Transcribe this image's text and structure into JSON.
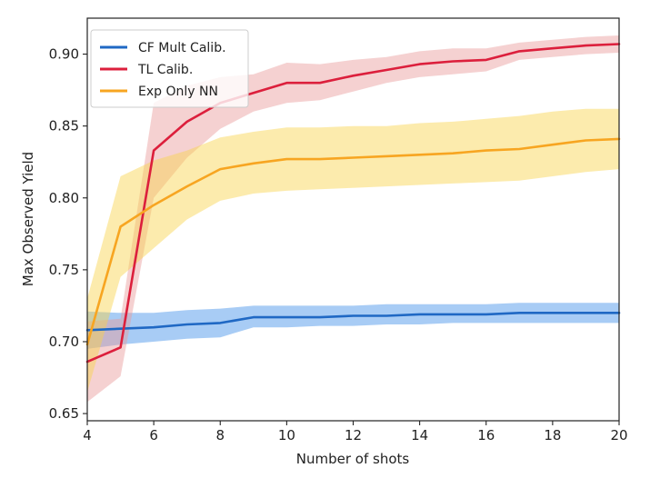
{
  "chart_data": {
    "type": "line",
    "xlabel": "Number of shots",
    "ylabel": "Max Observed Yield",
    "xlim": [
      4,
      20
    ],
    "ylim": [
      0.645,
      0.925
    ],
    "xticks": [
      4,
      6,
      8,
      10,
      12,
      14,
      16,
      18,
      20
    ],
    "yticks": [
      0.65,
      0.7,
      0.75,
      0.8,
      0.85,
      0.9
    ],
    "grid": false,
    "legend_position": "upper-left",
    "series": [
      {
        "name": "CF Mult Calib.",
        "color": "#1f68c4",
        "band_color": "#3d8ee8",
        "x": [
          4,
          5,
          6,
          7,
          8,
          9,
          10,
          11,
          12,
          13,
          14,
          15,
          16,
          17,
          18,
          19,
          20
        ],
        "y": [
          0.708,
          0.709,
          0.71,
          0.712,
          0.713,
          0.717,
          0.717,
          0.717,
          0.718,
          0.718,
          0.719,
          0.719,
          0.719,
          0.72,
          0.72,
          0.72,
          0.72
        ],
        "lower": [
          0.695,
          0.698,
          0.7,
          0.702,
          0.703,
          0.71,
          0.71,
          0.711,
          0.711,
          0.712,
          0.712,
          0.713,
          0.713,
          0.713,
          0.713,
          0.713,
          0.713
        ],
        "upper": [
          0.721,
          0.72,
          0.72,
          0.722,
          0.723,
          0.725,
          0.725,
          0.725,
          0.725,
          0.726,
          0.726,
          0.726,
          0.726,
          0.727,
          0.727,
          0.727,
          0.727
        ]
      },
      {
        "name": "TL Calib.",
        "color": "#dc1f3c",
        "band_color": "#e89a9a",
        "x": [
          4,
          5,
          6,
          7,
          8,
          9,
          10,
          11,
          12,
          13,
          14,
          15,
          16,
          17,
          18,
          19,
          20
        ],
        "y": [
          0.686,
          0.696,
          0.833,
          0.853,
          0.866,
          0.873,
          0.88,
          0.88,
          0.885,
          0.889,
          0.893,
          0.895,
          0.896,
          0.902,
          0.904,
          0.906,
          0.907
        ],
        "lower": [
          0.658,
          0.676,
          0.8,
          0.828,
          0.848,
          0.86,
          0.866,
          0.868,
          0.874,
          0.88,
          0.884,
          0.886,
          0.888,
          0.896,
          0.898,
          0.9,
          0.901
        ],
        "upper": [
          0.714,
          0.716,
          0.866,
          0.878,
          0.884,
          0.886,
          0.894,
          0.893,
          0.896,
          0.898,
          0.902,
          0.904,
          0.904,
          0.908,
          0.91,
          0.912,
          0.913
        ]
      },
      {
        "name": "Exp Only NN",
        "color": "#f7a521",
        "band_color": "#f9d24a",
        "x": [
          4,
          5,
          6,
          7,
          8,
          9,
          10,
          11,
          12,
          13,
          14,
          15,
          16,
          17,
          18,
          19,
          20
        ],
        "y": [
          0.698,
          0.78,
          0.795,
          0.808,
          0.82,
          0.824,
          0.827,
          0.827,
          0.828,
          0.829,
          0.83,
          0.831,
          0.833,
          0.834,
          0.837,
          0.84,
          0.841
        ],
        "lower": [
          0.665,
          0.745,
          0.765,
          0.785,
          0.798,
          0.803,
          0.805,
          0.806,
          0.807,
          0.808,
          0.809,
          0.81,
          0.811,
          0.812,
          0.815,
          0.818,
          0.82
        ],
        "upper": [
          0.73,
          0.815,
          0.826,
          0.833,
          0.842,
          0.846,
          0.849,
          0.849,
          0.85,
          0.85,
          0.852,
          0.853,
          0.855,
          0.857,
          0.86,
          0.862,
          0.862
        ]
      }
    ]
  }
}
